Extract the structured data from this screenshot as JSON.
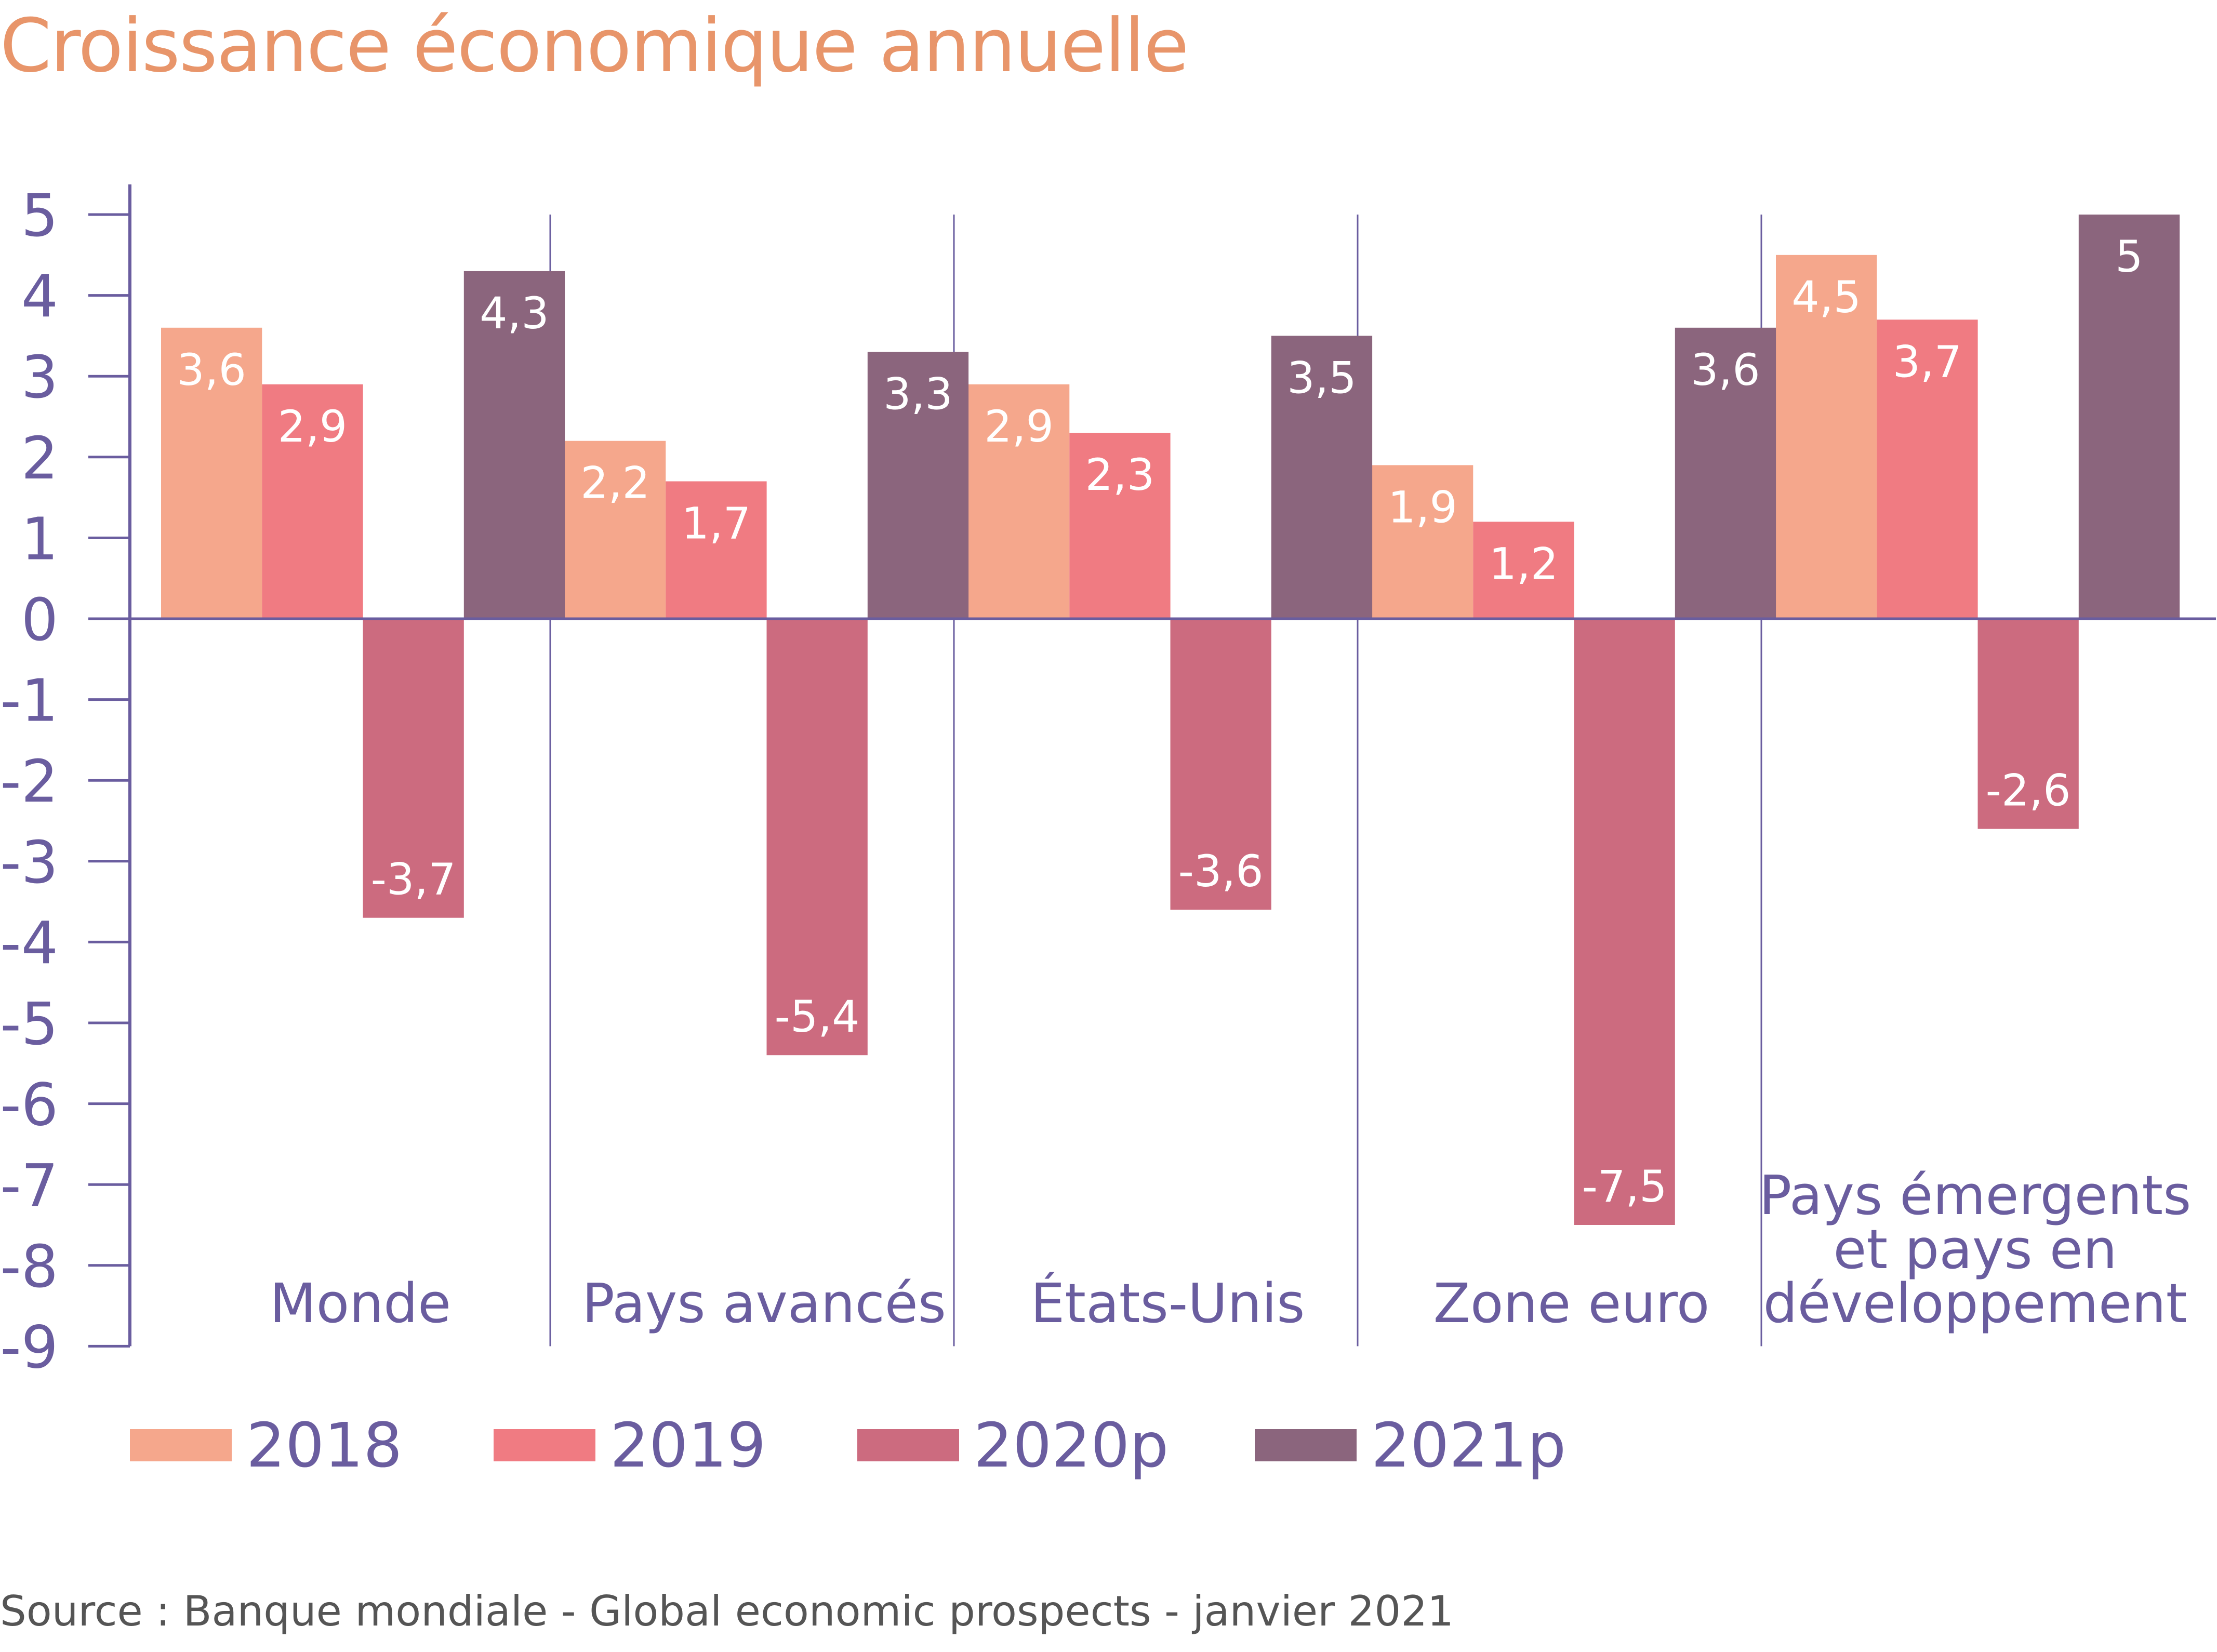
{
  "chart_data": {
    "type": "bar",
    "title": "Croissance économique annuelle",
    "categories": [
      [
        "Monde"
      ],
      [
        "Pays avancés"
      ],
      [
        "États-Unis"
      ],
      [
        "Zone euro"
      ],
      [
        "Pays émergents",
        "et pays en",
        "développement"
      ]
    ],
    "series": [
      {
        "name": "2018",
        "color": "#f5a78c",
        "labels": [
          "3,6",
          "2,2",
          "2,9",
          "1,9",
          "4,5"
        ],
        "values": [
          3.6,
          2.2,
          2.9,
          1.9,
          4.5
        ]
      },
      {
        "name": "2019",
        "color": "#f07b82",
        "labels": [
          "2,9",
          "1,7",
          "2,3",
          "1,2",
          "3,7"
        ],
        "values": [
          2.9,
          1.7,
          2.3,
          1.2,
          3.7
        ]
      },
      {
        "name": "2020p",
        "color": "#cc6b7f",
        "labels": [
          "-3,7",
          "-5,4",
          "-3,6",
          "-7,5",
          "-2,6"
        ],
        "values": [
          -3.7,
          -5.4,
          -3.6,
          -7.5,
          -2.6
        ]
      },
      {
        "name": "2021p",
        "color": "#8b657d",
        "labels": [
          "4,3",
          "3,3",
          "3,5",
          "3,6",
          "5"
        ],
        "values": [
          4.3,
          3.3,
          3.5,
          3.6,
          5.0
        ]
      }
    ],
    "y_ticks": [
      5,
      4,
      3,
      2,
      1,
      0,
      -1,
      -2,
      -3,
      -4,
      -5,
      -6,
      -7,
      -8,
      -9
    ],
    "y_tick_labels": [
      "5",
      "4",
      "3",
      "2",
      "1",
      "0",
      "-1",
      "-2",
      "-3",
      "-4",
      "-5",
      "-6",
      "-7",
      "-8",
      "-9"
    ],
    "ylim": [
      -9,
      5
    ],
    "xlabel": "",
    "ylabel": "",
    "grid": false,
    "legend": "bottom",
    "axis_color": "#6a5d9f",
    "text_color": "#6a5d9f",
    "label_color": "#ffffff"
  },
  "legend": {
    "label_2018": "2018",
    "label_2019": "2019",
    "label_2020p": "2020p",
    "label_2021p": "2021p"
  },
  "source": "Source : Banque mondiale - Global economic prospects - janvier 2021"
}
